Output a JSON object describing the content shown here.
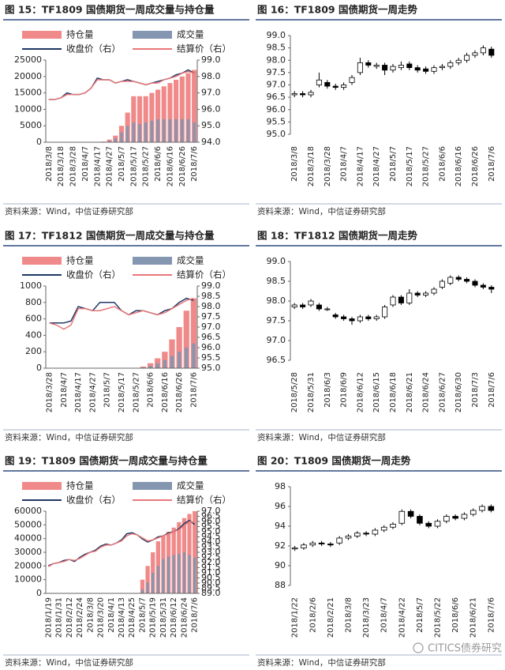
{
  "chart_data": [
    {
      "type": "combo",
      "title": "图 15：TF1809 国债期货一周成交量与持仓量",
      "source": "资料来源：Wind，中信证券研究部",
      "categories": [
        "2018/3/8",
        null,
        "2018/3/18",
        null,
        "2018/3/28",
        null,
        "2018/4/7",
        null,
        "2018/4/17",
        null,
        "2018/4/27",
        null,
        "2018/5/7",
        null,
        "2018/5/17",
        null,
        "2018/5/27",
        null,
        "2018/6/6",
        null,
        "2018/6/16",
        null,
        "2018/6/26",
        null,
        "2018/7/6"
      ],
      "ylim": [
        0,
        25000
      ],
      "yticks": [
        0,
        5000,
        10000,
        15000,
        20000,
        25000
      ],
      "y2lim": [
        94,
        99
      ],
      "y2ticks": [
        {
          "value": 94,
          "label": "94.0"
        },
        {
          "value": 95,
          "label": "95.0"
        },
        {
          "value": 96,
          "label": "96.0"
        },
        {
          "value": 97,
          "label": "97.0"
        },
        {
          "value": 98,
          "label": "98.0"
        },
        {
          "value": 99,
          "label": "99.0"
        }
      ],
      "series": [
        {
          "name": "持仓量",
          "type": "bar",
          "color": "#f08a8a",
          "values": [
            0,
            0,
            0,
            0,
            0,
            0,
            0,
            0,
            0,
            200,
            800,
            2000,
            5000,
            9000,
            14000,
            14000,
            14000,
            15000,
            16000,
            17000,
            18000,
            19000,
            20000,
            21000,
            22000
          ]
        },
        {
          "name": "成交量",
          "type": "bar",
          "color": "#8496b0",
          "values": [
            0,
            0,
            0,
            0,
            0,
            0,
            0,
            0,
            0,
            100,
            400,
            1200,
            3000,
            5000,
            6000,
            5500,
            6000,
            6500,
            7000,
            7000,
            7000,
            7000,
            7000,
            7000,
            6000
          ]
        },
        {
          "name": "收盘价（右）",
          "type": "line",
          "axis": "y2",
          "color": "#1f3864",
          "values": [
            96.6,
            96.6,
            96.7,
            97.0,
            96.9,
            96.9,
            97.0,
            97.3,
            97.9,
            97.8,
            97.8,
            97.6,
            97.7,
            97.8,
            97.7,
            97.6,
            97.5,
            97.6,
            97.7,
            97.8,
            97.9,
            98.1,
            98.2,
            98.4,
            98.2
          ]
        },
        {
          "name": "结算价（右）",
          "type": "line",
          "axis": "y2",
          "color": "#e8777a",
          "values": [
            96.6,
            96.6,
            96.7,
            96.9,
            96.9,
            96.9,
            97.0,
            97.3,
            97.8,
            97.8,
            97.8,
            97.6,
            97.7,
            97.7,
            97.7,
            97.6,
            97.5,
            97.6,
            97.6,
            97.8,
            97.9,
            98.0,
            98.2,
            98.3,
            98.2
          ]
        }
      ]
    },
    {
      "type": "candlestick",
      "title": "图 16：TF1809 国债期货一周走势",
      "source": "资料来源：Wind，中信证券研究部",
      "categories": [
        "2018/3/8",
        null,
        "2018/3/18",
        null,
        "2018/3/28",
        null,
        "2018/4/7",
        null,
        "2018/4/17",
        null,
        "2018/4/27",
        null,
        "2018/5/7",
        null,
        "2018/5/17",
        null,
        "2018/5/27",
        null,
        "2018/6/6",
        null,
        "2018/6/16",
        null,
        "2018/6/26",
        null,
        "2018/7/6"
      ],
      "ylim": [
        95,
        99
      ],
      "yticks": [
        {
          "value": 95,
          "label": "95.0"
        },
        95.5,
        {
          "value": 96,
          "label": "96.0"
        },
        96.5,
        {
          "value": 97,
          "label": "97.0"
        },
        97.5,
        {
          "value": 98,
          "label": "98.0"
        },
        98.5,
        {
          "value": 99,
          "label": "99.0"
        }
      ],
      "open": [
        96.6,
        96.65,
        96.6,
        97.0,
        97.1,
        96.95,
        96.9,
        97.1,
        97.5,
        97.9,
        97.75,
        97.8,
        97.6,
        97.7,
        97.85,
        97.7,
        97.65,
        97.55,
        97.7,
        97.75,
        97.9,
        98.0,
        98.2,
        98.3,
        98.45
      ],
      "high": [
        96.75,
        96.75,
        96.8,
        97.5,
        97.2,
        97.05,
        97.1,
        97.4,
        98.1,
        98.0,
        97.9,
        97.9,
        97.85,
        97.95,
        97.95,
        97.8,
        97.75,
        97.8,
        97.85,
        98.0,
        98.1,
        98.3,
        98.4,
        98.6,
        98.55
      ],
      "low": [
        96.5,
        96.5,
        96.5,
        96.9,
        96.85,
        96.8,
        96.8,
        97.0,
        97.4,
        97.7,
        97.65,
        97.4,
        97.5,
        97.6,
        97.6,
        97.5,
        97.45,
        97.45,
        97.6,
        97.65,
        97.8,
        97.9,
        98.1,
        98.2,
        98.1
      ],
      "close": [
        96.65,
        96.6,
        96.7,
        97.2,
        96.95,
        96.9,
        97.0,
        97.3,
        97.9,
        97.8,
        97.8,
        97.6,
        97.75,
        97.8,
        97.7,
        97.6,
        97.55,
        97.7,
        97.75,
        97.9,
        98.0,
        98.2,
        98.3,
        98.5,
        98.2
      ]
    },
    {
      "type": "combo",
      "title": "图 17：TF1812 国债期货一周成交量与持仓量",
      "source": "资料来源：Wind，中信证券研究部",
      "categories": [
        "2018/3/28",
        null,
        "2018/4/7",
        null,
        "2018/4/17",
        null,
        "2018/4/27",
        null,
        "2018/5/7",
        null,
        "2018/5/17",
        null,
        "2018/5/27",
        null,
        "2018/6/6",
        null,
        "2018/6/16",
        null,
        "2018/6/26",
        null,
        "2018/7/6"
      ],
      "ylim": [
        0,
        1000
      ],
      "yticks": [
        0,
        200,
        400,
        600,
        800,
        1000
      ],
      "y2lim": [
        95,
        99
      ],
      "y2ticks": [
        {
          "value": 95,
          "label": "95.0"
        },
        95.5,
        {
          "value": 96,
          "label": "96.0"
        },
        96.5,
        {
          "value": 97,
          "label": "97.0"
        },
        97.5,
        {
          "value": 98,
          "label": "98.0"
        },
        98.5,
        {
          "value": 99,
          "label": "99.0"
        }
      ],
      "series": [
        {
          "name": "持仓量",
          "type": "bar",
          "color": "#f08a8a",
          "values": [
            0,
            0,
            0,
            0,
            0,
            0,
            0,
            0,
            0,
            0,
            0,
            0,
            0,
            20,
            60,
            120,
            200,
            350,
            500,
            700,
            850
          ]
        },
        {
          "name": "成交量",
          "type": "bar",
          "color": "#8496b0",
          "values": [
            0,
            0,
            0,
            0,
            0,
            0,
            0,
            0,
            0,
            0,
            0,
            0,
            0,
            10,
            30,
            60,
            100,
            150,
            200,
            250,
            300
          ]
        },
        {
          "name": "收盘价（右）",
          "type": "line",
          "axis": "y2",
          "color": "#1f3864",
          "values": [
            97.2,
            97.2,
            97.2,
            97.3,
            98.0,
            97.9,
            97.8,
            98.2,
            98.2,
            98.2,
            97.8,
            97.6,
            97.8,
            97.8,
            97.7,
            97.6,
            97.8,
            97.9,
            98.2,
            98.4,
            98.3
          ]
        },
        {
          "name": "结算价（右）",
          "type": "line",
          "axis": "y2",
          "color": "#e8777a",
          "values": [
            97.2,
            97.1,
            96.9,
            97.1,
            97.9,
            97.9,
            97.8,
            97.8,
            97.9,
            98.0,
            97.8,
            97.6,
            97.7,
            97.8,
            97.7,
            97.6,
            97.7,
            97.9,
            98.1,
            98.3,
            98.4
          ]
        }
      ]
    },
    {
      "type": "candlestick",
      "title": "图 18：TF1812 国债期货一周走势",
      "source": "资料来源：Wind，中信证券研究部",
      "categories": [
        "2018/5/28",
        null,
        "2018/5/31",
        null,
        "2018/6/3",
        null,
        "2018/6/9",
        null,
        "2018/6/12",
        null,
        "2018/6/15",
        null,
        "2018/6/18",
        null,
        "2018/6/21",
        null,
        "2018/6/24",
        null,
        "2018/6/27",
        null,
        "2018/6/30",
        null,
        "2018/7/3",
        null,
        "2018/7/6"
      ],
      "ylim": [
        96.5,
        99
      ],
      "yticks": [
        96.5,
        {
          "value": 97,
          "label": "97.0"
        },
        97.5,
        {
          "value": 98,
          "label": "98.0"
        },
        98.5,
        {
          "value": 99,
          "label": "99.0"
        }
      ],
      "open": [
        97.85,
        97.9,
        97.9,
        97.9,
        97.8,
        97.65,
        97.6,
        97.55,
        97.5,
        97.6,
        97.55,
        97.6,
        97.9,
        98.1,
        97.95,
        98.2,
        98.15,
        98.2,
        98.35,
        98.45,
        98.6,
        98.55,
        98.5,
        98.4,
        98.35
      ],
      "high": [
        97.95,
        97.95,
        98.05,
        97.95,
        97.85,
        97.7,
        97.65,
        97.6,
        97.65,
        97.65,
        97.65,
        97.9,
        98.15,
        98.15,
        98.3,
        98.25,
        98.25,
        98.35,
        98.55,
        98.65,
        98.65,
        98.6,
        98.55,
        98.45,
        98.4
      ],
      "low": [
        97.8,
        97.8,
        97.85,
        97.75,
        97.75,
        97.55,
        97.5,
        97.4,
        97.45,
        97.5,
        97.5,
        97.55,
        97.85,
        97.9,
        97.9,
        98.1,
        98.1,
        98.15,
        98.3,
        98.4,
        98.5,
        98.45,
        98.35,
        98.3,
        98.2
      ],
      "close": [
        97.9,
        97.85,
        98.0,
        97.8,
        97.8,
        97.6,
        97.55,
        97.5,
        97.6,
        97.55,
        97.6,
        97.85,
        98.1,
        97.95,
        98.2,
        98.15,
        98.2,
        98.3,
        98.5,
        98.6,
        98.55,
        98.5,
        98.4,
        98.35,
        98.3
      ]
    },
    {
      "type": "combo",
      "title": "图 19：T1809 国债期货一周成交量与持仓量",
      "source": "资料来源：Wind，中信证券研究部",
      "categories": [
        "2018/1/19",
        null,
        "2018/1/31",
        null,
        "2018/2/12",
        null,
        "2018/2/24",
        null,
        "2018/3/8",
        null,
        "2018/3/20",
        null,
        "2018/4/1",
        null,
        "2018/4/13",
        null,
        "2018/4/25",
        null,
        "2018/5/7",
        null,
        "2018/5/19",
        null,
        "2018/5/31",
        null,
        "2018/6/12",
        null,
        "2018/6/24",
        null,
        "2018/7/6"
      ],
      "ylim": [
        0,
        60000
      ],
      "yticks": [
        0,
        10000,
        20000,
        30000,
        40000,
        50000,
        60000
      ],
      "y2lim": [
        89,
        97
      ],
      "y2ticks": [
        {
          "value": 89,
          "label": "89.0"
        },
        89.5,
        {
          "value": 90,
          "label": "90.0"
        },
        90.5,
        {
          "value": 91,
          "label": "91.0"
        },
        91.5,
        {
          "value": 92,
          "label": "92.0"
        },
        92.5,
        {
          "value": 93,
          "label": "93.0"
        },
        93.5,
        {
          "value": 94,
          "label": "94.0"
        },
        94.5,
        {
          "value": 95,
          "label": "95.0"
        },
        95.5,
        {
          "value": 96,
          "label": "96.0"
        },
        96.5,
        {
          "value": 97,
          "label": "97.0"
        }
      ],
      "series": [
        {
          "name": "持仓量",
          "type": "bar",
          "color": "#f08a8a",
          "values": [
            0,
            0,
            0,
            0,
            0,
            0,
            0,
            0,
            0,
            0,
            0,
            0,
            0,
            0,
            0,
            0,
            0,
            0,
            10000,
            20000,
            30000,
            38000,
            42000,
            45000,
            48000,
            52000,
            55000,
            58000,
            60000
          ]
        },
        {
          "name": "成交量",
          "type": "bar",
          "color": "#8496b0",
          "values": [
            0,
            0,
            0,
            0,
            0,
            0,
            0,
            0,
            0,
            0,
            0,
            0,
            0,
            0,
            0,
            0,
            0,
            0,
            3000,
            8000,
            15000,
            20000,
            25000,
            27000,
            28000,
            29000,
            30000,
            28000,
            26000
          ]
        },
        {
          "name": "收盘价（右）",
          "type": "line",
          "axis": "y2",
          "color": "#1f3864",
          "values": [
            91.7,
            91.9,
            92.0,
            92.2,
            92.3,
            92.1,
            92.5,
            92.8,
            93.0,
            93.2,
            93.6,
            93.8,
            93.7,
            93.9,
            94.2,
            94.8,
            94.9,
            94.7,
            94.3,
            94.0,
            94.2,
            94.5,
            94.6,
            94.9,
            95.0,
            95.3,
            95.8,
            96.1,
            95.7
          ]
        },
        {
          "name": "结算价（右）",
          "type": "line",
          "axis": "y2",
          "color": "#e8777a",
          "values": [
            91.6,
            91.9,
            92.0,
            92.1,
            92.3,
            92.2,
            92.4,
            92.7,
            93.0,
            93.1,
            93.5,
            93.7,
            93.7,
            93.9,
            94.1,
            94.6,
            94.8,
            94.7,
            94.4,
            94.1,
            94.2,
            94.4,
            94.6,
            94.8,
            95.0,
            95.2,
            95.6,
            96.0,
            95.9
          ]
        }
      ]
    },
    {
      "type": "candlestick",
      "title": "图 20：T1809 国债期货一周走势",
      "source": "资料来源：Wind，中信证券研究部",
      "categories": [
        "2018/1/22",
        null,
        "2018/2/6",
        null,
        "2018/2/21",
        null,
        "2018/3/8",
        null,
        "2018/3/23",
        null,
        "2018/4/7",
        null,
        "2018/4/22",
        null,
        "2018/5/7",
        null,
        "2018/5/22",
        null,
        "2018/6/6",
        null,
        "2018/6/21",
        null,
        "2018/7/6"
      ],
      "ylim": [
        88,
        98
      ],
      "yticks": [
        88,
        90,
        92,
        94,
        96,
        98
      ],
      "open": [
        91.7,
        91.8,
        92.1,
        92.3,
        92.2,
        92.3,
        92.8,
        93.0,
        93.3,
        93.2,
        93.6,
        93.9,
        94.3,
        95.5,
        95.0,
        94.3,
        94.0,
        94.5,
        95.0,
        94.8,
        95.2,
        95.6,
        96.0
      ],
      "high": [
        92.0,
        92.3,
        92.5,
        92.5,
        92.4,
        93.0,
        93.2,
        93.5,
        93.5,
        93.8,
        94.1,
        94.4,
        95.7,
        95.7,
        95.2,
        94.5,
        94.7,
        95.2,
        95.2,
        95.4,
        95.8,
        96.2,
        96.2
      ],
      "low": [
        91.5,
        91.6,
        91.9,
        92.0,
        91.9,
        92.1,
        92.6,
        92.8,
        93.0,
        93.0,
        93.4,
        93.7,
        94.1,
        94.8,
        94.1,
        93.8,
        93.8,
        94.3,
        94.6,
        94.6,
        95.0,
        95.4,
        95.4
      ],
      "close": [
        91.8,
        92.1,
        92.3,
        92.2,
        92.1,
        92.8,
        93.0,
        93.3,
        93.2,
        93.6,
        93.9,
        94.2,
        95.5,
        95.0,
        94.3,
        94.0,
        94.5,
        95.0,
        94.8,
        95.2,
        95.6,
        96.0,
        95.6
      ]
    }
  ],
  "watermark": "CITICS债券研究"
}
